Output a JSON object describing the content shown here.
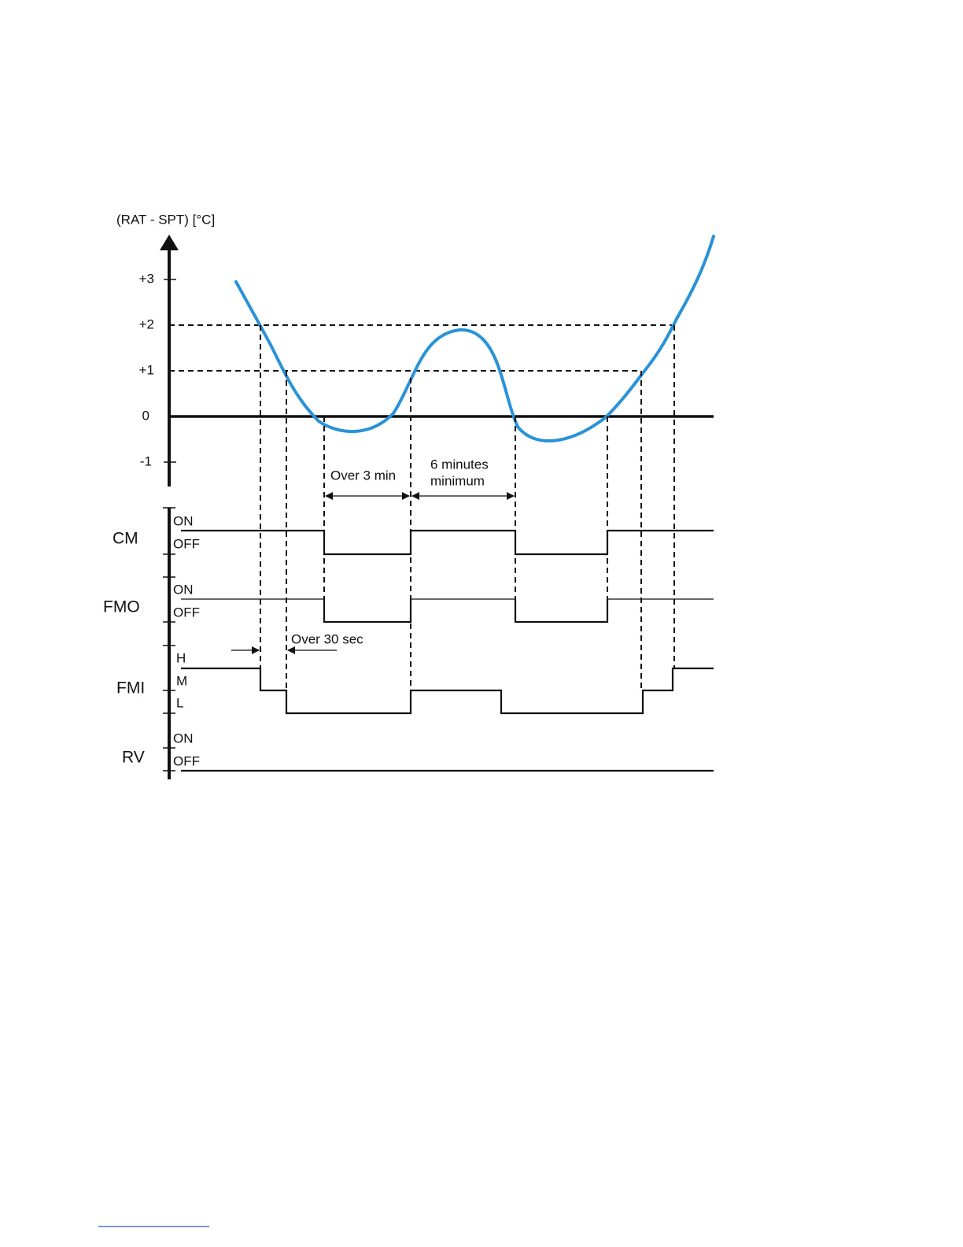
{
  "axis": {
    "label": "(RAT - SPT) [°C]",
    "ticks": [
      "+3",
      "+2",
      "+1",
      "0",
      "-1"
    ]
  },
  "annotations": {
    "over_3_min": "Over 3 min",
    "six_minutes": [
      "6 minutes",
      "minimum"
    ],
    "over_30_sec": "Over 30 sec"
  },
  "signals": [
    {
      "name": "CM",
      "levels": [
        "ON",
        "OFF"
      ]
    },
    {
      "name": "FMO",
      "levels": [
        "ON",
        "OFF"
      ]
    },
    {
      "name": "FMI",
      "levels": [
        "H",
        "M",
        "L"
      ]
    },
    {
      "name": "RV",
      "levels": [
        "ON",
        "OFF"
      ]
    }
  ]
}
